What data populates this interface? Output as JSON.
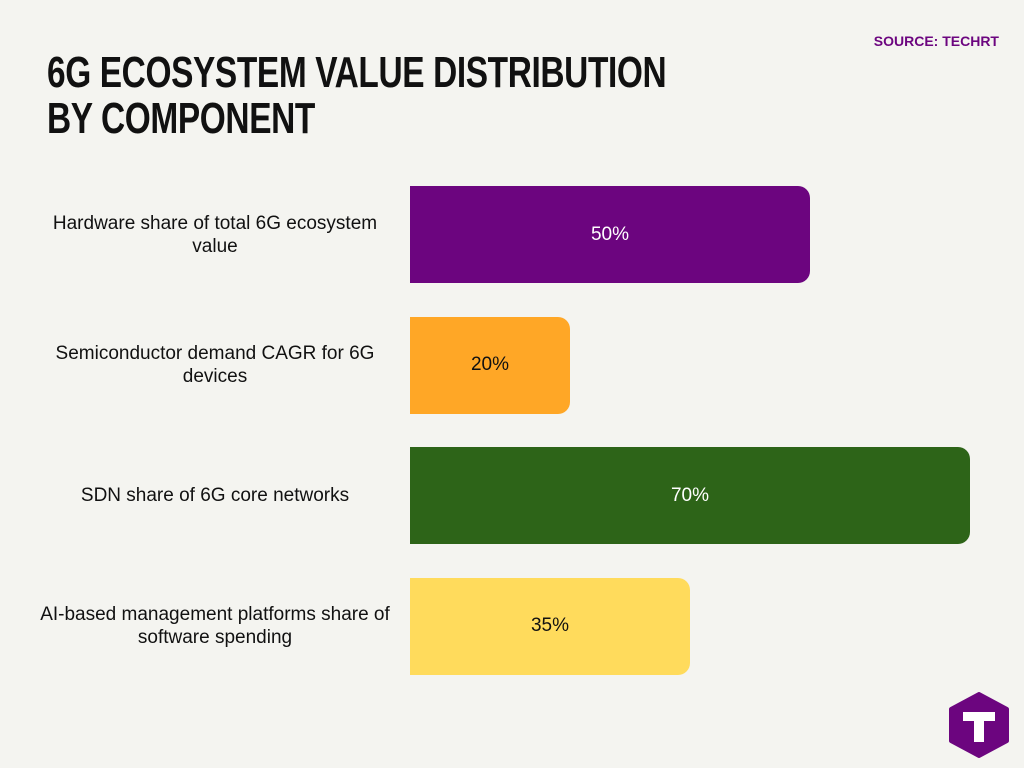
{
  "chart_data": {
    "type": "bar",
    "orientation": "horizontal",
    "title": "6G ECOSYSTEM VALUE DISTRIBUTION BY COMPONENT",
    "source": "SOURCE: TECHRT",
    "categories": [
      "Hardware share of total 6G ecosystem value",
      "Semiconductor demand CAGR for 6G devices",
      "SDN share of 6G core networks",
      "AI-based management platforms share of software spending"
    ],
    "values": [
      50,
      20,
      70,
      35
    ],
    "value_labels": [
      "50%",
      "20%",
      "70%",
      "35%"
    ],
    "colors": [
      "#6c057f",
      "#ffa726",
      "#2d6418",
      "#ffdb5c"
    ]
  }
}
